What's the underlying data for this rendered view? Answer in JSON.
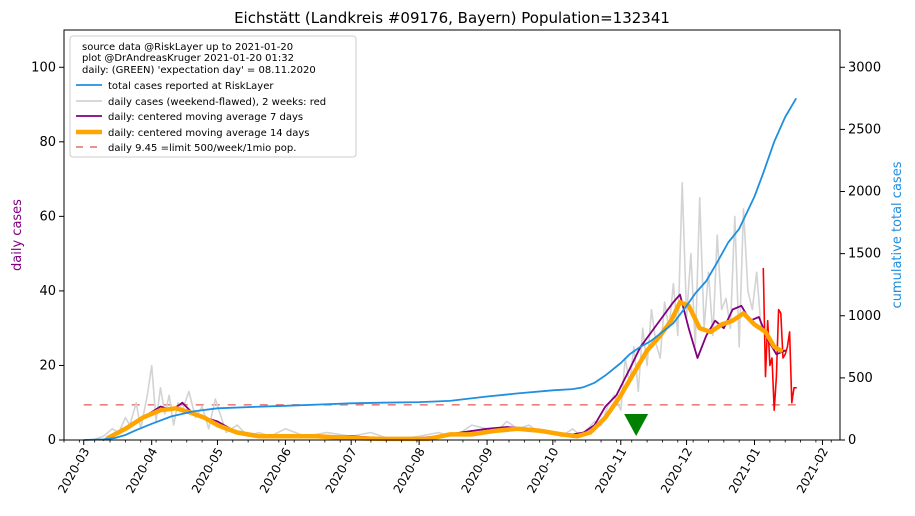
{
  "chart_data": {
    "type": "line",
    "title": "Eichstätt (Landkreis #09176, Bayern) Population=132341",
    "ylabel_left": "daily cases",
    "ylabel_right": "cumulative total cases",
    "ylim_left": [
      0,
      110
    ],
    "ylim_right": [
      0,
      3300
    ],
    "yticks_left": [
      0,
      20,
      40,
      60,
      80,
      100
    ],
    "yticks_right": [
      0,
      500,
      1000,
      1500,
      2000,
      2500,
      3000
    ],
    "xlim": [
      "2020-02-21",
      "2021-02-09"
    ],
    "xticks": [
      "2020-03",
      "2020-04",
      "2020-05",
      "2020-06",
      "2020-07",
      "2020-08",
      "2020-09",
      "2020-10",
      "2020-11",
      "2020-12",
      "2021-01",
      "2021-02"
    ],
    "xtick_dates": [
      "2020-03-01",
      "2020-04-01",
      "2020-05-01",
      "2020-06-01",
      "2020-07-01",
      "2020-08-01",
      "2020-09-01",
      "2020-10-01",
      "2020-11-01",
      "2020-12-01",
      "2021-01-01",
      "2021-02-01"
    ],
    "grid": false,
    "legend": {
      "placement": "top-left",
      "text_lines": [
        "source data @RiskLayer up to 2021-01-20",
        "plot @DrAndreasKruger 2021-01-20 01:32",
        "daily: (GREEN) 'expectation day' = 08.11.2020"
      ],
      "entries": [
        "total cases reported at RiskLayer",
        "daily cases (weekend-flawed), 2 weeks: red",
        "daily: centered moving average 7 days",
        "daily: centered moving average 14 days",
        "daily 9.45 =limit 500/week/1mio pop."
      ]
    },
    "colors": {
      "total": "#1f8fe0",
      "daily": "#d3d3d3",
      "daily_recent": "#ff0000",
      "ma7": "#800080",
      "ma14": "#ffa500",
      "limit": "#e8837c",
      "expectation": "#008000",
      "ylabel_left": "#800080",
      "ylabel_right": "#1f8fe0"
    },
    "limit_value": 9.45,
    "limit_range": [
      "2020-03-01",
      "2021-01-20"
    ],
    "expectation_day": "2020-11-08",
    "series": [
      {
        "name": "total cases reported at RiskLayer",
        "axis": "right",
        "x": [
          "2020-03-01",
          "2020-03-10",
          "2020-03-15",
          "2020-03-20",
          "2020-03-25",
          "2020-04-01",
          "2020-04-10",
          "2020-04-20",
          "2020-05-01",
          "2020-05-15",
          "2020-06-01",
          "2020-06-15",
          "2020-07-01",
          "2020-07-15",
          "2020-08-01",
          "2020-08-15",
          "2020-09-01",
          "2020-09-15",
          "2020-10-01",
          "2020-10-10",
          "2020-10-15",
          "2020-10-20",
          "2020-10-25",
          "2020-11-01",
          "2020-11-05",
          "2020-11-10",
          "2020-11-15",
          "2020-11-20",
          "2020-11-25",
          "2020-12-01",
          "2020-12-05",
          "2020-12-10",
          "2020-12-15",
          "2020-12-20",
          "2020-12-25",
          "2021-01-01",
          "2021-01-05",
          "2021-01-10",
          "2021-01-15",
          "2021-01-20"
        ],
        "y": [
          0,
          5,
          15,
          40,
          80,
          130,
          190,
          230,
          255,
          265,
          275,
          285,
          295,
          300,
          305,
          315,
          350,
          375,
          400,
          410,
          425,
          460,
          520,
          620,
          690,
          750,
          800,
          870,
          940,
          1080,
          1180,
          1280,
          1430,
          1590,
          1700,
          1960,
          2150,
          2400,
          2600,
          2750
        ]
      },
      {
        "name": "daily cases (weekend-flawed), 2 weeks: red",
        "axis": "left",
        "x": [
          "2020-03-05",
          "2020-03-10",
          "2020-03-14",
          "2020-03-17",
          "2020-03-20",
          "2020-03-22",
          "2020-03-25",
          "2020-03-27",
          "2020-03-30",
          "2020-04-01",
          "2020-04-03",
          "2020-04-05",
          "2020-04-07",
          "2020-04-09",
          "2020-04-11",
          "2020-04-13",
          "2020-04-15",
          "2020-04-18",
          "2020-04-21",
          "2020-04-24",
          "2020-04-27",
          "2020-04-30",
          "2020-05-05",
          "2020-05-10",
          "2020-05-15",
          "2020-05-20",
          "2020-05-25",
          "2020-06-01",
          "2020-06-10",
          "2020-06-20",
          "2020-07-01",
          "2020-07-10",
          "2020-07-20",
          "2020-08-01",
          "2020-08-10",
          "2020-08-15",
          "2020-08-20",
          "2020-08-25",
          "2020-09-01",
          "2020-09-05",
          "2020-09-10",
          "2020-09-15",
          "2020-09-20",
          "2020-09-25",
          "2020-10-01",
          "2020-10-05",
          "2020-10-10",
          "2020-10-14",
          "2020-10-17",
          "2020-10-20",
          "2020-10-23",
          "2020-10-26",
          "2020-10-29",
          "2020-11-01",
          "2020-11-03",
          "2020-11-05",
          "2020-11-07",
          "2020-11-09",
          "2020-11-11",
          "2020-11-13",
          "2020-11-15",
          "2020-11-17",
          "2020-11-19",
          "2020-11-21",
          "2020-11-23",
          "2020-11-25",
          "2020-11-27",
          "2020-11-29",
          "2020-12-01",
          "2020-12-03",
          "2020-12-05",
          "2020-12-07",
          "2020-12-09",
          "2020-12-11",
          "2020-12-13",
          "2020-12-15",
          "2020-12-17",
          "2020-12-19",
          "2020-12-21",
          "2020-12-23",
          "2020-12-25",
          "2020-12-27",
          "2020-12-29",
          "2020-12-31",
          "2021-01-02",
          "2021-01-04"
        ],
        "y": [
          0,
          1,
          3,
          2,
          6,
          4,
          10,
          3,
          12,
          20,
          5,
          14,
          7,
          12,
          4,
          10,
          8,
          13,
          6,
          9,
          3,
          11,
          2,
          4,
          1,
          2,
          1,
          3,
          1,
          2,
          1,
          2,
          0,
          1,
          2,
          1,
          2,
          4,
          3,
          2,
          5,
          3,
          4,
          2,
          2,
          1,
          3,
          1,
          3,
          5,
          4,
          9,
          12,
          8,
          22,
          15,
          25,
          13,
          30,
          20,
          35,
          26,
          22,
          37,
          30,
          42,
          28,
          69,
          33,
          50,
          25,
          65,
          30,
          45,
          28,
          55,
          35,
          38,
          30,
          60,
          25,
          62,
          40,
          35,
          45,
          30
        ]
      },
      {
        "name": "daily cases recent (red)",
        "axis": "left",
        "x": [
          "2021-01-05",
          "2021-01-06",
          "2021-01-07",
          "2021-01-08",
          "2021-01-09",
          "2021-01-10",
          "2021-01-11",
          "2021-01-12",
          "2021-01-13",
          "2021-01-14",
          "2021-01-15",
          "2021-01-16",
          "2021-01-17",
          "2021-01-18",
          "2021-01-19",
          "2021-01-20"
        ],
        "y": [
          46,
          17,
          32,
          20,
          22,
          8,
          17,
          35,
          34,
          22,
          23,
          25,
          29,
          10,
          14,
          14
        ]
      },
      {
        "name": "daily: centered moving average 7 days",
        "axis": "left",
        "x": [
          "2020-03-10",
          "2020-03-20",
          "2020-03-28",
          "2020-04-05",
          "2020-04-10",
          "2020-04-15",
          "2020-04-20",
          "2020-04-25",
          "2020-05-01",
          "2020-05-10",
          "2020-05-20",
          "2020-06-01",
          "2020-06-15",
          "2020-07-01",
          "2020-07-15",
          "2020-08-01",
          "2020-08-10",
          "2020-08-20",
          "2020-09-01",
          "2020-09-10",
          "2020-09-20",
          "2020-10-01",
          "2020-10-10",
          "2020-10-15",
          "2020-10-20",
          "2020-10-25",
          "2020-10-30",
          "2020-11-05",
          "2020-11-10",
          "2020-11-15",
          "2020-11-20",
          "2020-11-25",
          "2020-11-28",
          "2020-12-02",
          "2020-12-06",
          "2020-12-10",
          "2020-12-14",
          "2020-12-18",
          "2020-12-22",
          "2020-12-26",
          "2020-12-30",
          "2021-01-03",
          "2021-01-07",
          "2021-01-11",
          "2021-01-15"
        ],
        "y": [
          0,
          3,
          6,
          9,
          8,
          10,
          7,
          6,
          5,
          2,
          1,
          1,
          1,
          1,
          0.5,
          0.5,
          1,
          2,
          3,
          3.5,
          3,
          2,
          1.5,
          2,
          4,
          9,
          12,
          19,
          25,
          29,
          33,
          37,
          39,
          30,
          22,
          28,
          32,
          30,
          35,
          36,
          32,
          33,
          27,
          23,
          24
        ]
      },
      {
        "name": "daily: centered moving average 14 days",
        "axis": "left",
        "x": [
          "2020-03-12",
          "2020-03-20",
          "2020-03-28",
          "2020-04-05",
          "2020-04-12",
          "2020-04-18",
          "2020-04-25",
          "2020-05-01",
          "2020-05-10",
          "2020-05-20",
          "2020-06-01",
          "2020-06-15",
          "2020-07-01",
          "2020-07-15",
          "2020-07-25",
          "2020-08-05",
          "2020-08-15",
          "2020-08-25",
          "2020-09-05",
          "2020-09-15",
          "2020-09-25",
          "2020-10-05",
          "2020-10-12",
          "2020-10-18",
          "2020-10-25",
          "2020-11-01",
          "2020-11-07",
          "2020-11-13",
          "2020-11-19",
          "2020-11-24",
          "2020-11-28",
          "2020-12-02",
          "2020-12-07",
          "2020-12-12",
          "2020-12-17",
          "2020-12-22",
          "2020-12-27",
          "2021-01-01",
          "2021-01-06",
          "2021-01-10",
          "2021-01-13"
        ],
        "y": [
          0.5,
          3,
          6,
          8,
          8.5,
          7.5,
          6,
          4,
          2,
          1,
          1,
          1,
          0.5,
          0.3,
          0.3,
          0.3,
          1.5,
          1.5,
          2.5,
          3,
          2.5,
          1.5,
          1,
          2,
          6,
          12,
          18,
          24,
          28,
          32,
          37,
          36,
          30,
          29,
          31,
          32,
          34,
          31,
          29,
          25,
          24
        ]
      }
    ]
  }
}
